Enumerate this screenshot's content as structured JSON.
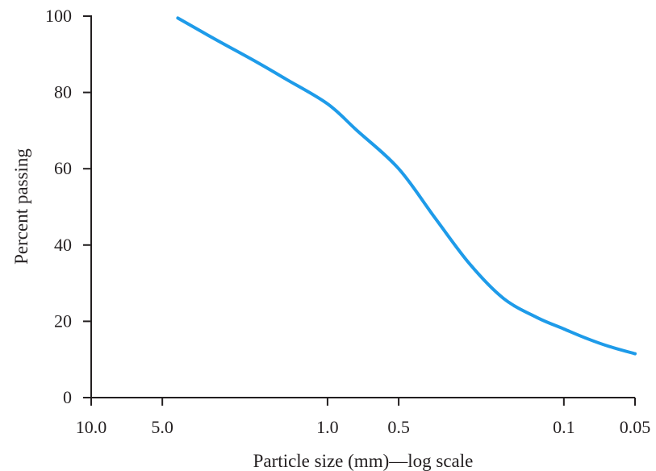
{
  "chart_data": {
    "type": "line",
    "title": "",
    "xlabel": "Particle size (mm)—log scale",
    "ylabel": "Percent passing",
    "x_scale": "log",
    "x_reversed": true,
    "xlim": [
      10.0,
      0.05
    ],
    "ylim": [
      0,
      100
    ],
    "grid": false,
    "x_ticks": [
      {
        "value": 10.0,
        "label": "10.0"
      },
      {
        "value": 5.0,
        "label": "5.0"
      },
      {
        "value": 1.0,
        "label": "1.0"
      },
      {
        "value": 0.5,
        "label": "0.5"
      },
      {
        "value": 0.1,
        "label": "0.1"
      },
      {
        "value": 0.05,
        "label": "0.05"
      }
    ],
    "y_ticks": [
      {
        "value": 0,
        "label": "0"
      },
      {
        "value": 20,
        "label": "20"
      },
      {
        "value": 40,
        "label": "40"
      },
      {
        "value": 60,
        "label": "60"
      },
      {
        "value": 80,
        "label": "80"
      },
      {
        "value": 100,
        "label": "100"
      }
    ],
    "series": [
      {
        "color": "#1e9be9",
        "x": [
          4.3,
          3.0,
          2.0,
          1.5,
          1.0,
          0.75,
          0.5,
          0.35,
          0.25,
          0.18,
          0.13,
          0.1,
          0.08,
          0.065,
          0.05
        ],
        "y": [
          99.5,
          94,
          88,
          83.5,
          77,
          70,
          60,
          47,
          35,
          26,
          21,
          18,
          15.5,
          13.5,
          11.5
        ]
      }
    ]
  }
}
